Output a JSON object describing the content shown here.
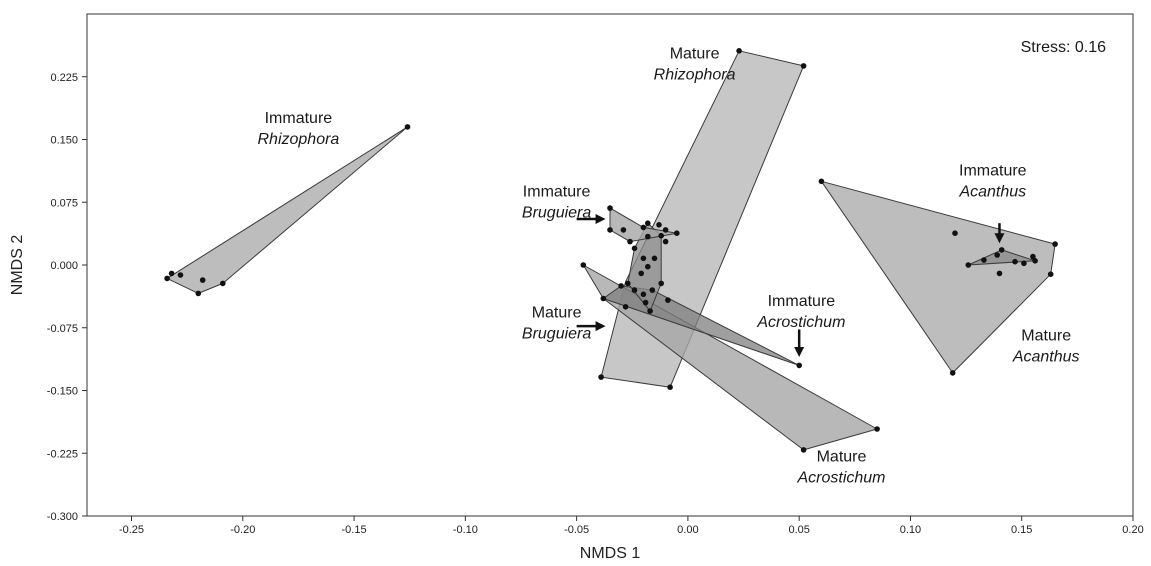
{
  "chart_data": {
    "type": "scatter",
    "title": "",
    "xlabel": "NMDS 1",
    "ylabel": "NMDS 2",
    "xlim": [
      -0.27,
      0.2
    ],
    "ylim": [
      -0.3,
      0.3
    ],
    "xticks": [
      -0.25,
      -0.2,
      -0.15,
      -0.1,
      -0.05,
      0.0,
      0.05,
      0.1,
      0.15,
      0.2
    ],
    "xtick_labels": [
      "-0.25",
      "-0.20",
      "-0.15",
      "-0.10",
      "-0.05",
      "0.00",
      "0.05",
      "0.10",
      "0.15",
      "0.20"
    ],
    "yticks": [
      -0.3,
      -0.225,
      -0.15,
      -0.075,
      0.0,
      0.075,
      0.15,
      0.225
    ],
    "ytick_labels": [
      "-0.300",
      "-0.225",
      "-0.150",
      "-0.075",
      "0.000",
      "0.075",
      "0.150",
      "0.225"
    ],
    "stress_label": "Stress: 0.16",
    "grid": false,
    "groups": [
      {
        "id": "immature-rhizophora",
        "fill": "#bdbdbd",
        "opacity": 1.0,
        "hull": [
          [
            -0.126,
            0.165
          ],
          [
            -0.234,
            -0.016
          ],
          [
            -0.22,
            -0.034
          ],
          [
            -0.209,
            -0.022
          ]
        ],
        "points": [
          [
            -0.126,
            0.165
          ],
          [
            -0.234,
            -0.016
          ],
          [
            -0.232,
            -0.01
          ],
          [
            -0.228,
            -0.012
          ],
          [
            -0.22,
            -0.034
          ],
          [
            -0.218,
            -0.018
          ],
          [
            -0.209,
            -0.022
          ]
        ]
      },
      {
        "id": "mature-rhizophora",
        "fill": "#bdbdbd",
        "opacity": 0.85,
        "hull": [
          [
            0.023,
            0.256
          ],
          [
            0.052,
            0.238
          ],
          [
            -0.008,
            -0.146
          ],
          [
            -0.039,
            -0.134
          ],
          [
            -0.028,
            -0.02
          ]
        ],
        "points": [
          [
            0.023,
            0.256
          ],
          [
            0.052,
            0.238
          ],
          [
            -0.008,
            -0.146
          ],
          [
            -0.039,
            -0.134
          ]
        ]
      },
      {
        "id": "mature-acanthus",
        "fill": "#bdbdbd",
        "opacity": 1.0,
        "hull": [
          [
            0.06,
            0.1
          ],
          [
            0.165,
            0.025
          ],
          [
            0.163,
            -0.011
          ],
          [
            0.119,
            -0.129
          ]
        ],
        "points": [
          [
            0.06,
            0.1
          ],
          [
            0.12,
            0.038
          ],
          [
            0.165,
            0.025
          ],
          [
            0.163,
            -0.011
          ],
          [
            0.119,
            -0.129
          ],
          [
            0.14,
            -0.01
          ],
          [
            0.155,
            0.01
          ]
        ]
      },
      {
        "id": "immature-acanthus",
        "fill": "#8c8c8c",
        "opacity": 0.8,
        "hull": [
          [
            0.141,
            0.018
          ],
          [
            0.156,
            0.005
          ],
          [
            0.126,
            0.0
          ]
        ],
        "points": [
          [
            0.126,
            0.0
          ],
          [
            0.133,
            0.006
          ],
          [
            0.141,
            0.018
          ],
          [
            0.139,
            0.012
          ],
          [
            0.147,
            0.004
          ],
          [
            0.151,
            0.002
          ],
          [
            0.156,
            0.005
          ]
        ]
      },
      {
        "id": "mature-acrostichum",
        "fill": "#a6a6a6",
        "opacity": 0.8,
        "hull": [
          [
            -0.047,
            0.0
          ],
          [
            -0.038,
            -0.04
          ],
          [
            0.052,
            -0.221
          ],
          [
            0.085,
            -0.196
          ]
        ],
        "points": [
          [
            -0.047,
            0.0
          ],
          [
            0.052,
            -0.221
          ],
          [
            0.085,
            -0.196
          ],
          [
            -0.009,
            -0.042
          ]
        ]
      },
      {
        "id": "immature-acrostichum",
        "fill": "#7f7f7f",
        "opacity": 0.75,
        "hull": [
          [
            -0.03,
            -0.025
          ],
          [
            -0.016,
            -0.03
          ],
          [
            0.05,
            -0.12
          ],
          [
            -0.038,
            -0.04
          ]
        ],
        "points": [
          [
            -0.038,
            -0.04
          ],
          [
            -0.03,
            -0.025
          ],
          [
            -0.016,
            -0.03
          ],
          [
            0.05,
            -0.12
          ],
          [
            -0.028,
            -0.05
          ],
          [
            -0.02,
            -0.035
          ]
        ]
      },
      {
        "id": "mature-bruguiera",
        "fill": "#8c8c8c",
        "opacity": 0.75,
        "hull": [
          [
            -0.018,
            0.05
          ],
          [
            -0.012,
            0.035
          ],
          [
            -0.012,
            -0.022
          ],
          [
            -0.017,
            -0.055
          ],
          [
            -0.027,
            -0.022
          ],
          [
            -0.024,
            0.02
          ]
        ],
        "points": [
          [
            -0.018,
            0.05
          ],
          [
            -0.012,
            0.035
          ],
          [
            -0.012,
            -0.022
          ],
          [
            -0.017,
            -0.055
          ],
          [
            -0.027,
            -0.022
          ],
          [
            -0.024,
            0.02
          ],
          [
            -0.02,
            0.008
          ],
          [
            -0.015,
            0.008
          ],
          [
            -0.021,
            -0.01
          ],
          [
            -0.018,
            -0.002
          ],
          [
            -0.024,
            -0.03
          ],
          [
            -0.019,
            -0.045
          ]
        ]
      },
      {
        "id": "immature-bruguiera",
        "fill": "#a6a6a6",
        "opacity": 0.8,
        "hull": [
          [
            -0.035,
            0.068
          ],
          [
            -0.02,
            0.045
          ],
          [
            -0.005,
            0.038
          ],
          [
            -0.026,
            0.028
          ],
          [
            -0.035,
            0.042
          ]
        ],
        "points": [
          [
            -0.035,
            0.068
          ],
          [
            -0.035,
            0.042
          ],
          [
            -0.029,
            0.042
          ],
          [
            -0.026,
            0.028
          ],
          [
            -0.02,
            0.045
          ],
          [
            -0.013,
            0.048
          ],
          [
            -0.01,
            0.042
          ],
          [
            -0.005,
            0.038
          ],
          [
            -0.01,
            0.028
          ],
          [
            -0.018,
            0.034
          ]
        ]
      }
    ],
    "annotations": [
      {
        "id": "immature-rhizophora",
        "lines": [
          {
            "text": "Immature",
            "italic": false
          },
          {
            "text": "Rhizophora",
            "italic": true
          }
        ],
        "at": [
          -0.175,
          0.17
        ]
      },
      {
        "id": "mature-rhizophora",
        "lines": [
          {
            "text": "Mature",
            "italic": false
          },
          {
            "text": "Rhizophora",
            "italic": true
          }
        ],
        "at": [
          0.003,
          0.247
        ]
      },
      {
        "id": "immature-bruguiera",
        "lines": [
          {
            "text": "Immature",
            "italic": false
          },
          {
            "text": "Bruguiera",
            "italic": true
          }
        ],
        "at": [
          -0.059,
          0.082
        ]
      },
      {
        "id": "mature-bruguiera",
        "lines": [
          {
            "text": "Mature",
            "italic": false
          },
          {
            "text": "Bruguiera",
            "italic": true
          }
        ],
        "at": [
          -0.059,
          -0.063
        ]
      },
      {
        "id": "immature-acrostichum",
        "lines": [
          {
            "text": "Immature",
            "italic": false
          },
          {
            "text": "Acrostichum",
            "italic": true
          }
        ],
        "at": [
          0.051,
          -0.049
        ]
      },
      {
        "id": "mature-acrostichum",
        "lines": [
          {
            "text": "Mature",
            "italic": false
          },
          {
            "text": "Acrostichum",
            "italic": true
          }
        ],
        "at": [
          0.069,
          -0.235
        ]
      },
      {
        "id": "immature-acanthus",
        "lines": [
          {
            "text": "Immature",
            "italic": false
          },
          {
            "text": "Acanthus",
            "italic": true
          }
        ],
        "at": [
          0.137,
          0.107
        ]
      },
      {
        "id": "mature-acanthus",
        "lines": [
          {
            "text": "Mature",
            "italic": false
          },
          {
            "text": "Acanthus",
            "italic": true
          }
        ],
        "at": [
          0.161,
          -0.09
        ]
      }
    ],
    "arrows": [
      {
        "id": "immature-bruguiera-arrow",
        "from": [
          -0.05,
          0.055
        ],
        "to": [
          -0.037,
          0.055
        ]
      },
      {
        "id": "mature-bruguiera-arrow",
        "from": [
          -0.05,
          -0.073
        ],
        "to": [
          -0.037,
          -0.073
        ]
      },
      {
        "id": "immature-acrostichum-arrow",
        "from": [
          0.05,
          -0.077
        ],
        "to": [
          0.05,
          -0.11
        ]
      },
      {
        "id": "immature-acanthus-arrow",
        "from": [
          0.14,
          0.05
        ],
        "to": [
          0.14,
          0.026
        ]
      }
    ]
  }
}
